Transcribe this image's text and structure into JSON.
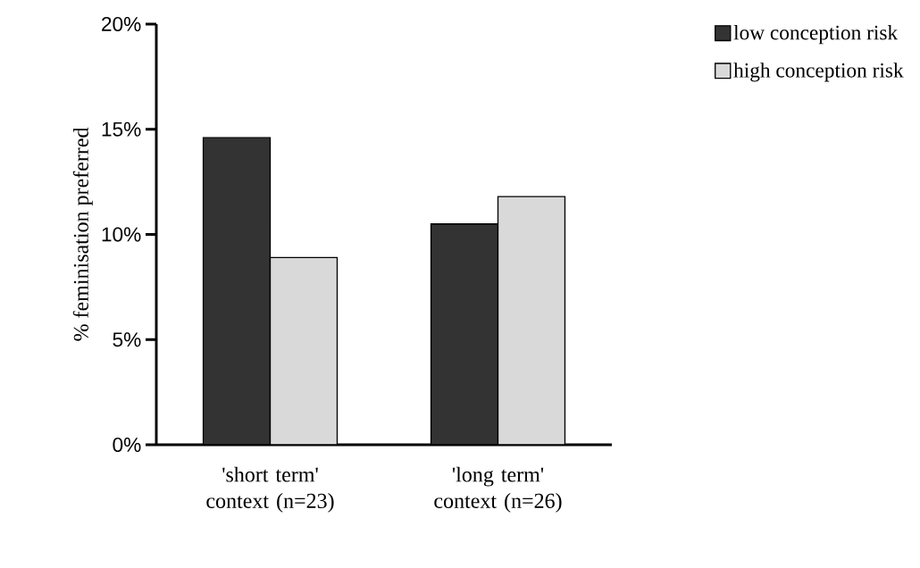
{
  "chart_data": {
    "type": "bar",
    "ylabel": "% feminisation preferred",
    "categories": [
      "'short term' context (n=23)",
      "'long term' context (n=26)"
    ],
    "series": [
      {
        "name": "low conception risk",
        "color": "#333333",
        "values": [
          14.6,
          10.5
        ]
      },
      {
        "name": "high conception risk",
        "color": "#d9d9d9",
        "values": [
          8.9,
          11.8
        ]
      }
    ],
    "ylim": [
      0,
      20
    ],
    "yticks": [
      {
        "value": 0,
        "label": "0%"
      },
      {
        "value": 5,
        "label": "5%"
      },
      {
        "value": 10,
        "label": "10%"
      },
      {
        "value": 15,
        "label": "15%"
      },
      {
        "value": 20,
        "label": "20%"
      }
    ],
    "grid": false,
    "legend": "top right"
  }
}
